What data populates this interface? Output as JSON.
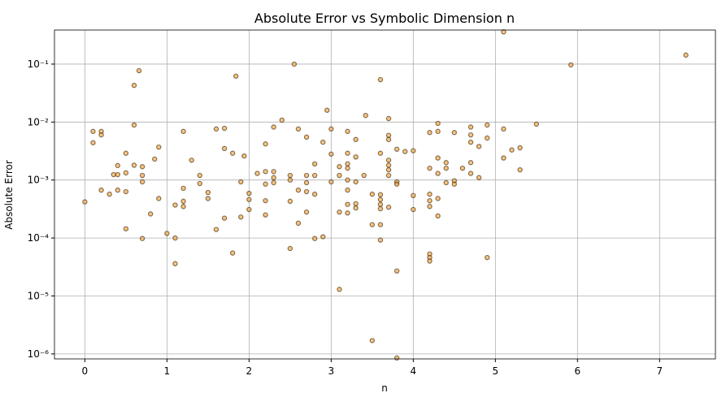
{
  "chart_data": {
    "type": "scatter",
    "title": "Absolute Error vs Symbolic Dimension n",
    "x_label": "n",
    "y_label": "Absolute Error",
    "xlim": [
      -0.37,
      7.68
    ],
    "xticks": [
      0,
      1,
      2,
      3,
      4,
      5,
      6,
      7
    ],
    "ylim": [
      8.2e-07,
      0.387
    ],
    "y_log": true,
    "yticks": [
      {
        "value": 1e-06,
        "label": "10⁻⁶"
      },
      {
        "value": 1e-05,
        "label": "10⁻⁵"
      },
      {
        "value": 0.0001,
        "label": "10⁻⁴"
      },
      {
        "value": 0.001,
        "label": "10⁻³"
      },
      {
        "value": 0.01,
        "label": "10⁻²"
      },
      {
        "value": 0.1,
        "label": "10⁻¹"
      }
    ],
    "grid": true,
    "color": "#f0a030",
    "edge_color": "#3a2000",
    "x": [
      0,
      0.1,
      0.1,
      0.2,
      0.2,
      0.2,
      0.3,
      0.35,
      0.4,
      0.4,
      0.4,
      0.5,
      0.5,
      0.5,
      0.5,
      0.6,
      0.6,
      0.6,
      0.66,
      0.7,
      0.7,
      0.7,
      0.7,
      0.8,
      0.85,
      0.9,
      0.9,
      1.0,
      1.1,
      1.1,
      1.1,
      1.2,
      1.2,
      1.2,
      1.2,
      1.3,
      1.4,
      1.4,
      1.5,
      1.5,
      1.6,
      1.6,
      1.7,
      1.7,
      1.7,
      1.8,
      1.8,
      1.84,
      1.9,
      1.9,
      1.94,
      2.0,
      2.0,
      2.0,
      2.1,
      2.2,
      2.2,
      2.2,
      2.2,
      2.2,
      2.3,
      2.3,
      2.3,
      2.3,
      2.4,
      2.5,
      2.5,
      2.5,
      2.5,
      2.55,
      2.6,
      2.6,
      2.6,
      2.7,
      2.7,
      2.7,
      2.7,
      2.7,
      2.8,
      2.8,
      2.8,
      2.8,
      2.9,
      2.9,
      2.95,
      3.0,
      3.0,
      3.0,
      3.1,
      3.1,
      3.1,
      3.1,
      3.2,
      3.2,
      3.2,
      3.2,
      3.2,
      3.2,
      3.2,
      3.2,
      3.3,
      3.3,
      3.3,
      3.3,
      3.3,
      3.4,
      3.42,
      3.5,
      3.5,
      3.5,
      3.6,
      3.6,
      3.6,
      3.6,
      3.6,
      3.6,
      3.6,
      3.6,
      3.7,
      3.7,
      3.7,
      3.7,
      3.7,
      3.7,
      3.7,
      3.7,
      3.8,
      3.8,
      3.8,
      3.8,
      3.8,
      3.9,
      4.0,
      4.0,
      4.0,
      4.2,
      4.2,
      4.2,
      4.2,
      4.2,
      4.2,
      4.2,
      4.2,
      4.3,
      4.3,
      4.3,
      4.3,
      4.3,
      4.3,
      4.4,
      4.4,
      4.4,
      4.5,
      4.5,
      4.5,
      4.6,
      4.7,
      4.7,
      4.7,
      4.7,
      4.7,
      4.8,
      4.8,
      4.9,
      4.9,
      4.9,
      5.1,
      5.1,
      5.1,
      5.2,
      5.3,
      5.3,
      5.5,
      5.92,
      7.32
    ],
    "y": [
      0.00042,
      0.0069,
      0.0044,
      0.0069,
      0.006,
      0.00067,
      0.00057,
      0.00124,
      0.00178,
      0.00124,
      0.00067,
      0.0029,
      0.00133,
      0.00063,
      0.000144,
      0.043,
      0.0089,
      0.0018,
      0.077,
      0.0017,
      0.0012,
      0.00093,
      9.8e-05,
      0.00026,
      0.0023,
      0.0037,
      0.00048,
      0.00012,
      0.0001,
      0.00037,
      3.6e-05,
      0.0069,
      0.00072,
      0.00043,
      0.00035,
      0.0022,
      0.0012,
      0.00087,
      0.00061,
      0.00048,
      0.0076,
      0.00014,
      0.0078,
      0.0035,
      0.00022,
      0.0029,
      5.5e-05,
      0.062,
      0.00093,
      0.00023,
      0.0026,
      0.00059,
      0.00046,
      0.00031,
      0.0013,
      0.0042,
      0.0014,
      0.00085,
      0.00044,
      0.00025,
      0.0082,
      0.0014,
      0.0011,
      0.0009,
      0.0108,
      0.0012,
      0.001,
      0.00043,
      6.6e-05,
      0.1,
      0.0076,
      0.00067,
      0.00018,
      0.0055,
      0.0012,
      0.0009,
      0.00063,
      0.00028,
      0.0019,
      0.0012,
      0.00057,
      9.8e-05,
      0.0045,
      0.000105,
      0.016,
      0.0076,
      0.0028,
      0.00093,
      0.0017,
      0.0012,
      0.00028,
      1.3e-05,
      0.0069,
      0.0029,
      0.0019,
      0.0016,
      0.001,
      0.00067,
      0.00038,
      0.00027,
      0.005,
      0.0025,
      0.00093,
      0.00039,
      0.00033,
      0.0012,
      0.013,
      0.00057,
      0.00017,
      1.7e-06,
      0.054,
      0.0029,
      0.00056,
      0.00046,
      0.00038,
      0.00032,
      0.00017,
      9.2e-05,
      0.0115,
      0.0059,
      0.005,
      0.0022,
      0.0018,
      0.0015,
      0.0012,
      0.00034,
      0.0034,
      0.00093,
      0.00085,
      2.7e-05,
      8.5e-07,
      0.0031,
      0.0032,
      0.00054,
      0.00031,
      0.0066,
      0.0016,
      0.00057,
      0.00044,
      0.00035,
      5.3e-05,
      4.6e-05,
      4e-05,
      0.0095,
      0.0069,
      0.0024,
      0.0013,
      0.00048,
      0.00024,
      0.002,
      0.0016,
      0.0009,
      0.0066,
      0.00097,
      0.00085,
      0.0016,
      0.0082,
      0.006,
      0.0045,
      0.002,
      0.0013,
      0.0038,
      0.0011,
      0.0089,
      0.0053,
      4.6e-05,
      0.0076,
      0.0024,
      0.36,
      0.0033,
      0.0036,
      0.0015,
      0.0092,
      0.097,
      0.143
    ]
  }
}
